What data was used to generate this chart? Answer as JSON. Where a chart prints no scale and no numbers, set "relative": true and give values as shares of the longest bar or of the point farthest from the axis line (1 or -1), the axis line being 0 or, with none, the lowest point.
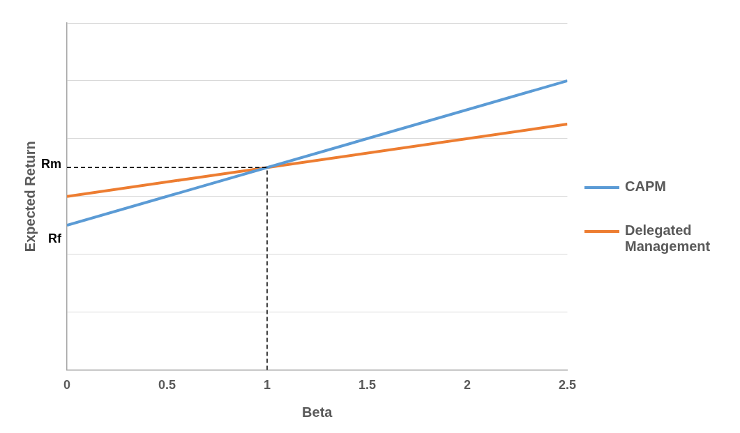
{
  "chart_data": {
    "type": "line",
    "xlabel": "Beta",
    "ylabel": "Expected Return",
    "x": [
      0,
      2.5
    ],
    "relative": true,
    "series": [
      {
        "name": "CAPM",
        "color": "#5b9bd5",
        "values": [
          0.5,
          1
        ]
      },
      {
        "name": "Delegated Management",
        "color": "#ed7d31",
        "values": [
          0.6,
          0.85
        ]
      }
    ],
    "xlim": [
      0,
      2.5
    ],
    "xticks": [
      0,
      0.5,
      1,
      1.5,
      2,
      2.5
    ],
    "grid": "y",
    "legend": "right",
    "marker": "none",
    "line_style": "solid",
    "ref_lines": [
      {
        "axis": "y",
        "value": 0.7,
        "label": "Rm",
        "color": "#000000",
        "line_style": "dashed"
      },
      {
        "axis": "x",
        "value": 1,
        "label": null,
        "color": "#000000",
        "line_style": "dashed"
      }
    ],
    "annotations": [
      {
        "text": "Rf",
        "x": 0,
        "y": 0.5
      }
    ]
  }
}
